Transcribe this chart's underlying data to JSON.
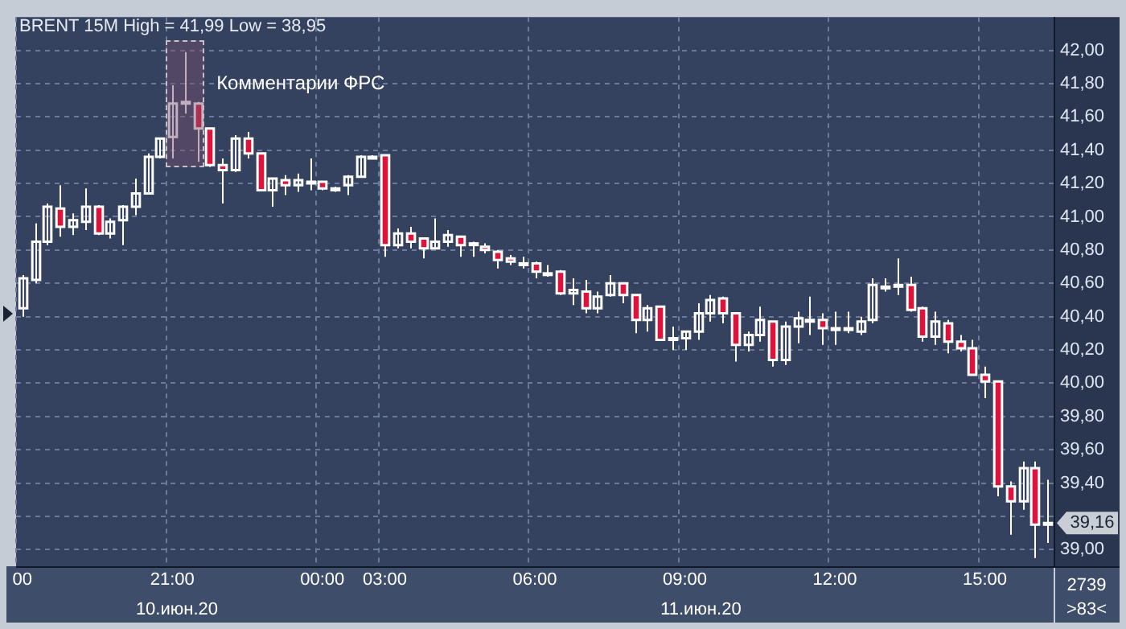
{
  "chart_data": {
    "type": "candlestick",
    "title": "BRENT 15M High = 41,99 Low = 38,95",
    "categories": [
      "00",
      null,
      null,
      null,
      null,
      null,
      null,
      null,
      null,
      null,
      null,
      null,
      "21:00",
      null,
      null,
      null,
      null,
      null,
      null,
      null,
      null,
      null,
      null,
      null,
      "00:00",
      null,
      null,
      null,
      null,
      "03:00",
      null,
      null,
      null,
      null,
      null,
      null,
      null,
      null,
      null,
      null,
      null,
      "06:00",
      null,
      null,
      null,
      null,
      null,
      null,
      null,
      null,
      null,
      null,
      null,
      "09:00",
      null,
      null,
      null,
      null,
      null,
      null,
      null,
      null,
      null,
      null,
      null,
      "12:00",
      null,
      null,
      null,
      null,
      null,
      null,
      null,
      null,
      null,
      null,
      null,
      "15:00",
      null,
      null,
      null,
      null,
      null
    ],
    "series": [
      {
        "ohlc": [
          [
            40.45,
            40.65,
            40.4,
            40.63
          ],
          [
            40.62,
            40.96,
            40.6,
            40.85
          ],
          [
            40.85,
            41.08,
            40.83,
            41.06
          ],
          [
            41.05,
            41.19,
            40.88,
            40.94
          ],
          [
            40.94,
            41.02,
            40.89,
            40.98
          ],
          [
            40.97,
            41.17,
            40.92,
            41.06
          ],
          [
            41.06,
            41.07,
            40.89,
            40.9
          ],
          [
            40.9,
            40.99,
            40.87,
            40.97
          ],
          [
            40.98,
            41.07,
            40.83,
            41.06
          ],
          [
            41.06,
            41.23,
            41.01,
            41.14
          ],
          [
            41.14,
            41.38,
            41.14,
            41.36
          ],
          [
            41.36,
            41.47,
            41.35,
            41.47
          ],
          [
            41.48,
            41.79,
            41.35,
            41.68
          ],
          [
            41.68,
            41.99,
            41.62,
            41.69
          ],
          [
            41.68,
            41.69,
            41.33,
            41.53
          ],
          [
            41.53,
            41.53,
            41.3,
            41.31
          ],
          [
            41.31,
            41.35,
            41.08,
            41.28
          ],
          [
            41.28,
            41.49,
            41.27,
            41.47
          ],
          [
            41.47,
            41.51,
            41.35,
            41.38
          ],
          [
            41.38,
            41.38,
            41.16,
            41.16
          ],
          [
            41.16,
            41.23,
            41.06,
            41.23
          ],
          [
            41.22,
            41.25,
            41.13,
            41.19
          ],
          [
            41.19,
            41.26,
            41.15,
            41.22
          ],
          [
            41.2,
            41.35,
            41.16,
            41.21
          ],
          [
            41.21,
            41.21,
            41.16,
            41.17
          ],
          [
            41.16,
            41.18,
            41.15,
            41.17
          ],
          [
            41.19,
            41.25,
            41.13,
            41.24
          ],
          [
            41.24,
            41.37,
            41.24,
            41.36
          ],
          [
            41.36,
            41.37,
            41.35,
            41.36
          ],
          [
            41.37,
            41.37,
            40.76,
            40.83
          ],
          [
            40.83,
            40.93,
            40.81,
            40.9
          ],
          [
            40.9,
            40.94,
            40.81,
            40.85
          ],
          [
            40.87,
            40.87,
            40.75,
            40.81
          ],
          [
            40.81,
            40.99,
            40.81,
            40.85
          ],
          [
            40.85,
            40.92,
            40.82,
            40.89
          ],
          [
            40.88,
            40.88,
            40.76,
            40.83
          ],
          [
            40.84,
            40.85,
            40.76,
            40.84
          ],
          [
            40.82,
            40.84,
            40.78,
            40.8
          ],
          [
            40.79,
            40.8,
            40.69,
            40.74
          ],
          [
            40.75,
            40.77,
            40.71,
            40.73
          ],
          [
            40.72,
            40.76,
            40.69,
            40.72
          ],
          [
            40.72,
            40.73,
            40.63,
            40.67
          ],
          [
            40.66,
            40.71,
            40.64,
            40.66
          ],
          [
            40.67,
            40.68,
            40.53,
            40.54
          ],
          [
            40.54,
            40.63,
            40.47,
            40.56
          ],
          [
            40.55,
            40.62,
            40.42,
            40.45
          ],
          [
            40.45,
            40.55,
            40.42,
            40.52
          ],
          [
            40.53,
            40.65,
            40.52,
            40.6
          ],
          [
            40.6,
            40.6,
            40.48,
            40.53
          ],
          [
            40.53,
            40.53,
            40.3,
            40.38
          ],
          [
            40.38,
            40.47,
            40.31,
            40.45
          ],
          [
            40.46,
            40.46,
            40.26,
            40.26
          ],
          [
            40.27,
            40.34,
            40.2,
            40.27
          ],
          [
            40.27,
            40.31,
            40.2,
            40.31
          ],
          [
            40.31,
            40.48,
            40.26,
            40.42
          ],
          [
            40.42,
            40.53,
            40.37,
            40.5
          ],
          [
            40.51,
            40.52,
            40.36,
            40.42
          ],
          [
            40.42,
            40.42,
            40.13,
            40.23
          ],
          [
            40.23,
            40.31,
            40.19,
            40.29
          ],
          [
            40.29,
            40.46,
            40.25,
            40.38
          ],
          [
            40.37,
            40.37,
            40.1,
            40.14
          ],
          [
            40.14,
            40.37,
            40.11,
            40.34
          ],
          [
            40.34,
            40.43,
            40.24,
            40.39
          ],
          [
            40.38,
            40.52,
            40.29,
            40.38
          ],
          [
            40.38,
            40.42,
            40.23,
            40.33
          ],
          [
            40.33,
            40.43,
            40.23,
            40.33
          ],
          [
            40.33,
            40.43,
            40.3,
            40.33
          ],
          [
            40.31,
            40.4,
            40.29,
            40.37
          ],
          [
            40.38,
            40.63,
            40.36,
            40.59
          ],
          [
            40.58,
            40.63,
            40.55,
            40.58
          ],
          [
            40.59,
            40.75,
            40.53,
            40.59
          ],
          [
            40.59,
            40.64,
            40.43,
            40.44
          ],
          [
            40.45,
            40.46,
            40.25,
            40.28
          ],
          [
            40.28,
            40.43,
            40.23,
            40.37
          ],
          [
            40.36,
            40.38,
            40.18,
            40.25
          ],
          [
            40.25,
            40.29,
            40.19,
            40.21
          ],
          [
            40.21,
            40.26,
            40.05,
            40.05
          ],
          [
            40.05,
            40.1,
            39.91,
            40.01
          ],
          [
            40.01,
            40.01,
            39.32,
            39.38
          ],
          [
            39.38,
            39.41,
            39.09,
            39.29
          ],
          [
            39.29,
            39.53,
            39.24,
            39.49
          ],
          [
            39.49,
            39.53,
            38.95,
            39.15
          ],
          [
            39.15,
            39.42,
            39.04,
            39.16
          ]
        ],
        "colors": [
          "#ffffff",
          "#ffffff",
          "#ffffff",
          "#dc143c",
          "#ffffff",
          "#ffffff",
          "#dc143c",
          "#ffffff",
          "#ffffff",
          "#ffffff",
          "#ffffff",
          "#ffffff",
          "#ffffff",
          "#ffffff",
          "#dc143c",
          "#dc143c",
          "#dc143c",
          "#ffffff",
          "#dc143c",
          "#dc143c",
          "#ffffff",
          "#dc143c",
          "#ffffff",
          "#ffffff",
          "#dc143c",
          "#ffffff",
          "#ffffff",
          "#ffffff",
          "#ffffff",
          "#dc143c",
          "#ffffff",
          "#dc143c",
          "#dc143c",
          "#ffffff",
          "#ffffff",
          "#dc143c",
          "#ffffff",
          "#dc143c",
          "#dc143c",
          "#dc143c",
          "#ffffff",
          "#dc143c",
          "#ffffff",
          "#dc143c",
          "#ffffff",
          "#dc143c",
          "#ffffff",
          "#ffffff",
          "#dc143c",
          "#dc143c",
          "#ffffff",
          "#dc143c",
          "#ffffff",
          "#ffffff",
          "#ffffff",
          "#ffffff",
          "#dc143c",
          "#dc143c",
          "#ffffff",
          "#ffffff",
          "#dc143c",
          "#ffffff",
          "#ffffff",
          "#ffffff",
          "#dc143c",
          "#ffffff",
          "#ffffff",
          "#ffffff",
          "#ffffff",
          "#ffffff",
          "#ffffff",
          "#dc143c",
          "#dc143c",
          "#ffffff",
          "#dc143c",
          "#dc143c",
          "#dc143c",
          "#dc143c",
          "#dc143c",
          "#dc143c",
          "#ffffff",
          "#dc143c",
          "#ffffff"
        ]
      }
    ],
    "ylim": [
      38.9,
      42.2
    ],
    "yticks": [
      {
        "value": 39,
        "label": "39,00"
      },
      {
        "value": 39.2,
        "label": null
      },
      {
        "value": 39.4,
        "label": "39,40"
      },
      {
        "value": 39.6,
        "label": "39,60"
      },
      {
        "value": 39.8,
        "label": "39,80"
      },
      {
        "value": 40,
        "label": "40,00"
      },
      {
        "value": 40.2,
        "label": "40,20"
      },
      {
        "value": 40.4,
        "label": "40,40"
      },
      {
        "value": 40.6,
        "label": "40,60"
      },
      {
        "value": 40.8,
        "label": "40,80"
      },
      {
        "value": 41,
        "label": "41,00"
      },
      {
        "value": 41.2,
        "label": "41,20"
      },
      {
        "value": 41.4,
        "label": "41,40"
      },
      {
        "value": 41.6,
        "label": "41,60"
      },
      {
        "value": 41.8,
        "label": "41,80"
      },
      {
        "value": 42,
        "label": "42,00"
      }
    ],
    "grid": true,
    "legend": false,
    "annotations": [
      {
        "text": "Комментарии ФРС",
        "x": "21:00",
        "y": 41.8
      },
      "39,16",
      "10.июн.20",
      "11.июн.20",
      "2739",
      ">83<"
    ]
  }
}
